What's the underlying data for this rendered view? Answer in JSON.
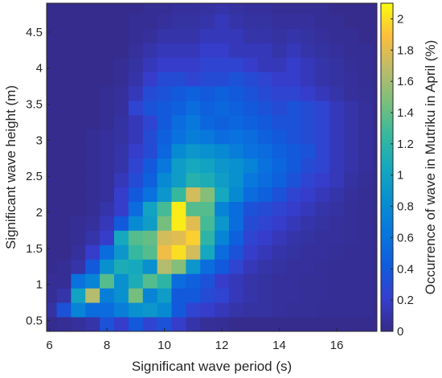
{
  "chart_data": {
    "type": "heatmap",
    "xlabel": "Significant wave period (s)",
    "ylabel": "Significant wave height (m)",
    "colorbar_label": "Occurrence of wave in Mutriku in April (%)",
    "colormap": "parula",
    "xlim": [
      5.9,
      17.4
    ],
    "ylim": [
      0.35,
      4.9
    ],
    "xticks": [
      6,
      8,
      10,
      12,
      14,
      16
    ],
    "yticks": [
      0.5,
      1,
      1.5,
      2,
      2.5,
      3,
      3.5,
      4,
      4.5
    ],
    "colorbar_range": [
      0,
      2.1
    ],
    "colorbar_ticks": [
      0,
      0.2,
      0.4,
      0.6,
      0.8,
      1,
      1.2,
      1.4,
      1.6,
      1.8,
      2
    ],
    "cell_x_width": 0.5,
    "cell_y_height": 0.2,
    "x_centers": [
      6.0,
      6.5,
      7.0,
      7.5,
      8.0,
      8.5,
      9.0,
      9.5,
      10.0,
      10.5,
      11.0,
      11.5,
      12.0,
      12.5,
      13.0,
      13.5,
      14.0,
      14.5,
      15.0,
      15.5,
      16.0,
      16.5,
      17.0
    ],
    "y_centers": [
      0.45,
      0.65,
      0.85,
      1.05,
      1.25,
      1.45,
      1.65,
      1.85,
      2.05,
      2.25,
      2.45,
      2.65,
      2.85,
      3.05,
      3.25,
      3.45,
      3.65,
      3.85,
      4.05,
      4.25,
      4.45,
      4.65,
      4.85
    ],
    "values": [
      [
        0.02,
        0.04,
        0.06,
        0.1,
        0.35,
        0.2,
        0.4,
        0.25,
        0.35,
        0.2,
        0.1,
        0.05,
        0.04,
        0.02,
        0.02,
        0.02,
        0.02,
        0.02,
        0.02,
        0.02,
        0.02,
        0.02,
        0.02
      ],
      [
        0.08,
        0.35,
        0.75,
        0.55,
        0.55,
        0.7,
        0.85,
        0.9,
        0.8,
        0.4,
        0.25,
        0.2,
        0.15,
        0.1,
        0.08,
        0.08,
        0.06,
        0.05,
        0.05,
        0.04,
        0.04,
        0.04,
        0.04
      ],
      [
        0.04,
        0.1,
        1.0,
        1.65,
        0.7,
        0.85,
        1.45,
        0.75,
        0.95,
        0.4,
        0.4,
        0.3,
        0.25,
        0.15,
        0.1,
        0.08,
        0.06,
        0.06,
        0.05,
        0.05,
        0.04,
        0.04,
        0.04
      ],
      [
        0.04,
        0.04,
        0.6,
        0.75,
        1.35,
        0.85,
        1.1,
        1.35,
        1.2,
        0.55,
        0.45,
        0.35,
        0.2,
        0.15,
        0.1,
        0.08,
        0.06,
        0.06,
        0.05,
        0.05,
        0.04,
        0.04,
        0.04
      ],
      [
        0.02,
        0.04,
        0.1,
        0.4,
        0.85,
        1.1,
        1.05,
        0.85,
        1.65,
        1.5,
        0.9,
        0.55,
        0.4,
        0.25,
        0.15,
        0.1,
        0.08,
        0.06,
        0.06,
        0.05,
        0.04,
        0.04,
        0.04
      ],
      [
        0.02,
        0.02,
        0.06,
        0.2,
        0.55,
        0.9,
        1.25,
        1.35,
        1.85,
        2.0,
        1.75,
        1.05,
        0.55,
        0.35,
        0.2,
        0.15,
        0.1,
        0.08,
        0.06,
        0.06,
        0.05,
        0.04,
        0.04
      ],
      [
        0.02,
        0.02,
        0.04,
        0.1,
        0.2,
        1.05,
        1.35,
        1.4,
        1.75,
        1.8,
        1.95,
        1.2,
        0.75,
        0.45,
        0.25,
        0.2,
        0.15,
        0.1,
        0.08,
        0.06,
        0.06,
        0.05,
        0.04
      ],
      [
        0.02,
        0.02,
        0.04,
        0.06,
        0.15,
        0.4,
        0.8,
        0.95,
        1.45,
        2.05,
        1.8,
        1.3,
        0.9,
        0.55,
        0.3,
        0.25,
        0.2,
        0.15,
        0.1,
        0.08,
        0.06,
        0.05,
        0.04
      ],
      [
        0.02,
        0.02,
        0.02,
        0.04,
        0.1,
        0.2,
        0.55,
        1.0,
        1.3,
        2.05,
        1.35,
        1.35,
        0.75,
        0.55,
        0.35,
        0.3,
        0.25,
        0.2,
        0.15,
        0.1,
        0.08,
        0.05,
        0.04
      ],
      [
        0.02,
        0.02,
        0.02,
        0.04,
        0.06,
        0.2,
        0.4,
        0.6,
        0.9,
        1.25,
        1.75,
        1.5,
        1.05,
        0.8,
        0.55,
        0.45,
        0.35,
        0.25,
        0.2,
        0.15,
        0.1,
        0.06,
        0.04
      ],
      [
        0.02,
        0.02,
        0.02,
        0.04,
        0.06,
        0.15,
        0.3,
        0.45,
        0.8,
        0.95,
        1.15,
        1.1,
        0.95,
        0.85,
        0.65,
        0.55,
        0.45,
        0.35,
        0.25,
        0.2,
        0.15,
        0.08,
        0.05
      ],
      [
        0.02,
        0.02,
        0.02,
        0.04,
        0.06,
        0.1,
        0.25,
        0.4,
        0.65,
        0.95,
        1.05,
        1.0,
        0.9,
        0.85,
        0.75,
        0.6,
        0.5,
        0.4,
        0.3,
        0.25,
        0.15,
        0.1,
        0.06
      ],
      [
        0.02,
        0.02,
        0.02,
        0.04,
        0.06,
        0.1,
        0.2,
        0.3,
        0.5,
        0.8,
        0.9,
        0.85,
        0.8,
        0.7,
        0.6,
        0.55,
        0.45,
        0.4,
        0.35,
        0.25,
        0.15,
        0.1,
        0.06
      ],
      [
        0.02,
        0.02,
        0.02,
        0.04,
        0.06,
        0.08,
        0.15,
        0.3,
        0.45,
        0.6,
        0.7,
        0.65,
        0.55,
        0.6,
        0.55,
        0.45,
        0.4,
        0.35,
        0.3,
        0.25,
        0.15,
        0.1,
        0.06
      ],
      [
        0.02,
        0.02,
        0.02,
        0.02,
        0.04,
        0.08,
        0.15,
        0.25,
        0.4,
        0.55,
        0.65,
        0.5,
        0.45,
        0.5,
        0.45,
        0.4,
        0.35,
        0.35,
        0.3,
        0.25,
        0.15,
        0.1,
        0.06
      ],
      [
        0.02,
        0.02,
        0.02,
        0.02,
        0.04,
        0.06,
        0.25,
        0.35,
        0.4,
        0.45,
        0.55,
        0.45,
        0.5,
        0.45,
        0.4,
        0.35,
        0.3,
        0.35,
        0.3,
        0.25,
        0.15,
        0.1,
        0.06
      ],
      [
        0.02,
        0.02,
        0.02,
        0.02,
        0.04,
        0.06,
        0.15,
        0.3,
        0.35,
        0.4,
        0.45,
        0.4,
        0.45,
        0.4,
        0.35,
        0.3,
        0.25,
        0.25,
        0.2,
        0.15,
        0.1,
        0.06,
        0.05
      ],
      [
        0.02,
        0.02,
        0.02,
        0.02,
        0.02,
        0.04,
        0.1,
        0.2,
        0.3,
        0.3,
        0.25,
        0.3,
        0.3,
        0.35,
        0.3,
        0.25,
        0.2,
        0.2,
        0.15,
        0.1,
        0.08,
        0.06,
        0.04
      ],
      [
        0.02,
        0.02,
        0.02,
        0.02,
        0.02,
        0.04,
        0.08,
        0.15,
        0.2,
        0.2,
        0.2,
        0.25,
        0.25,
        0.25,
        0.2,
        0.15,
        0.15,
        0.2,
        0.15,
        0.1,
        0.08,
        0.05,
        0.04
      ],
      [
        0.02,
        0.02,
        0.02,
        0.02,
        0.02,
        0.02,
        0.06,
        0.1,
        0.15,
        0.15,
        0.15,
        0.2,
        0.2,
        0.15,
        0.15,
        0.15,
        0.1,
        0.15,
        0.1,
        0.08,
        0.06,
        0.04,
        0.04
      ],
      [
        0.02,
        0.02,
        0.02,
        0.02,
        0.02,
        0.02,
        0.04,
        0.06,
        0.1,
        0.1,
        0.1,
        0.15,
        0.15,
        0.15,
        0.1,
        0.1,
        0.08,
        0.1,
        0.08,
        0.06,
        0.04,
        0.04,
        0.02
      ],
      [
        0.02,
        0.02,
        0.02,
        0.02,
        0.02,
        0.02,
        0.04,
        0.04,
        0.06,
        0.08,
        0.08,
        0.1,
        0.15,
        0.1,
        0.08,
        0.08,
        0.06,
        0.06,
        0.06,
        0.04,
        0.04,
        0.02,
        0.02
      ],
      [
        0.02,
        0.02,
        0.02,
        0.02,
        0.02,
        0.02,
        0.02,
        0.04,
        0.04,
        0.06,
        0.06,
        0.08,
        0.1,
        0.08,
        0.06,
        0.06,
        0.04,
        0.04,
        0.04,
        0.04,
        0.02,
        0.02,
        0.02
      ]
    ]
  }
}
